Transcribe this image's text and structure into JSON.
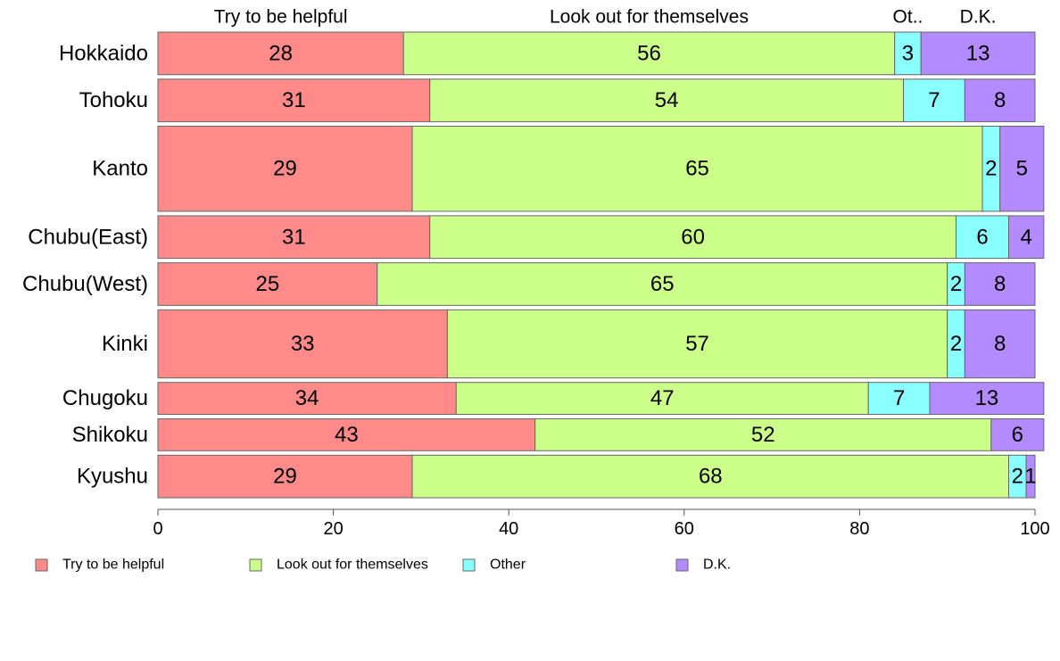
{
  "chart_data": {
    "type": "bar",
    "orientation": "horizontal",
    "stacked": true,
    "categories": [
      "Hokkaido",
      "Tohoku",
      "Kanto",
      "Chubu(East)",
      "Chubu(West)",
      "Kinki",
      "Chugoku",
      "Shikoku",
      "Kyushu"
    ],
    "relative_widths": [
      1,
      1,
      2,
      1,
      1,
      1.6,
      0.75,
      0.75,
      1
    ],
    "series": [
      {
        "name": "Try to be helpful",
        "top_label": "Try to be helpful",
        "color": "#FF8A8A",
        "values": [
          28,
          31,
          29,
          31,
          25,
          33,
          34,
          43,
          29
        ]
      },
      {
        "name": "Look out for themselves",
        "top_label": "Look out for themselves",
        "color": "#CCFF8A",
        "values": [
          56,
          54,
          65,
          60,
          65,
          57,
          47,
          52,
          68
        ]
      },
      {
        "name": "Other",
        "top_label": "Ot..",
        "color": "#8AFFFF",
        "values": [
          3,
          7,
          2,
          6,
          2,
          2,
          7,
          0,
          2
        ]
      },
      {
        "name": "D.K.",
        "top_label": "D.K.",
        "color": "#B38AFF",
        "values": [
          13,
          8,
          5,
          4,
          8,
          8,
          13,
          6,
          1
        ]
      }
    ],
    "xlim": [
      0,
      100
    ],
    "xticks": [
      "0",
      "20",
      "40",
      "60",
      "80",
      "100"
    ],
    "grid": false,
    "legend_position": "bottom",
    "title": "",
    "xlabel": "",
    "ylabel": ""
  }
}
